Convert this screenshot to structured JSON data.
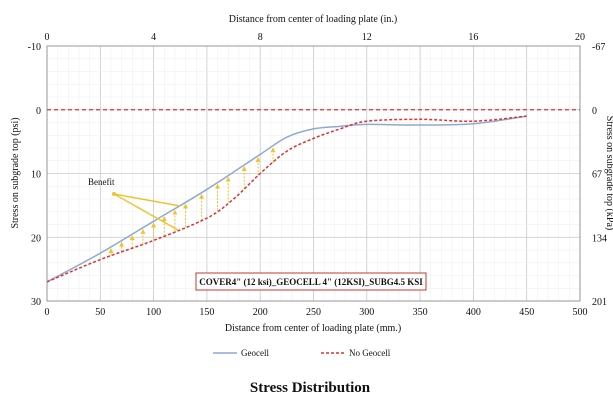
{
  "chart_data": {
    "type": "line",
    "title": "Stress Distribution",
    "xlabel": "Distance from center of loading plate (mm.)",
    "x2label": "Distance from center of loading plate (in.)",
    "ylabel": "Stress on subgrade top (psi)",
    "y2label": "Stress on subgrade top (kPa)",
    "xlim": [
      0,
      500
    ],
    "ylim": [
      -10,
      30
    ],
    "y_inverted": true,
    "x_ticks": [
      "0",
      "50",
      "100",
      "150",
      "200",
      "250",
      "300",
      "350",
      "400",
      "450",
      "500"
    ],
    "x2_ticks": [
      "0",
      "4",
      "8",
      "12",
      "16",
      "20"
    ],
    "y_ticks": [
      "-10",
      "0",
      "10",
      "20",
      "30"
    ],
    "y2_ticks": [
      "-67",
      "0",
      "67",
      "134",
      "201"
    ],
    "grid": true,
    "legend_position": "bottom",
    "annotation_box": "COVER4\" (12 ksi)_GEOCELL 4\" (12KSI)_SUBG4.5 KSI",
    "annotation_label": "Benefit",
    "reference_line": {
      "y": 0,
      "style": "dashed",
      "color": "#e03030"
    },
    "series": [
      {
        "name": "Geocell",
        "color": "#8fa9d6",
        "style": "solid",
        "x": [
          0,
          50,
          100,
          150,
          200,
          225,
          250,
          275,
          300,
          350,
          400,
          450
        ],
        "y": [
          27,
          22.5,
          17.5,
          12.5,
          7,
          4.3,
          3,
          2.6,
          2.3,
          2.4,
          2.2,
          1
        ]
      },
      {
        "name": "No Geocell",
        "color": "#e03030",
        "style": "dashed",
        "x": [
          0,
          50,
          100,
          150,
          175,
          200,
          225,
          250,
          275,
          300,
          350,
          400,
          450
        ],
        "y": [
          27,
          23.5,
          20.5,
          17,
          14,
          10,
          6.5,
          4.5,
          3,
          1.8,
          1.5,
          1.8,
          1
        ]
      }
    ],
    "benefit_x": [
      60,
      70,
      80,
      90,
      100,
      110,
      120,
      130,
      145,
      160,
      170,
      185,
      198,
      212
    ]
  },
  "colors": {
    "benefit_arrows": "#f2c12e",
    "annotation_box_border": "#c0392b",
    "grid": "#dcdcdc"
  }
}
